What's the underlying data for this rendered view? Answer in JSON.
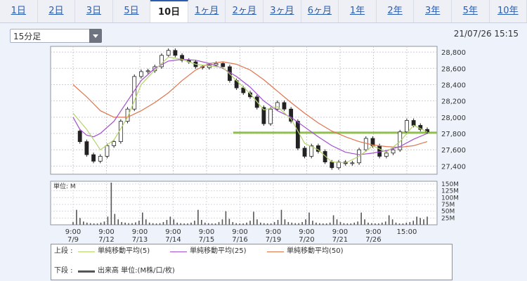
{
  "tabs": [
    {
      "label": "1日",
      "active": false
    },
    {
      "label": "2日",
      "active": false
    },
    {
      "label": "3日",
      "active": false
    },
    {
      "label": "5日",
      "active": false
    },
    {
      "label": "10日",
      "active": true
    },
    {
      "label": "1ヶ月",
      "active": false
    },
    {
      "label": "2ヶ月",
      "active": false
    },
    {
      "label": "3ヶ月",
      "active": false
    },
    {
      "label": "6ヶ月",
      "active": false
    },
    {
      "label": "1年",
      "active": false
    },
    {
      "label": "2年",
      "active": false
    },
    {
      "label": "3年",
      "active": false
    },
    {
      "label": "5年",
      "active": false
    },
    {
      "label": "10年",
      "active": false
    }
  ],
  "interval_select": {
    "value": "15分足"
  },
  "timestamp": "21/07/26 15:15",
  "legend": {
    "upper_label": "上段 :",
    "lower_label": "下段 :",
    "ma5": "単純移動平均(5)",
    "ma25": "単純移動平均(25)",
    "ma50": "単純移動平均(50)",
    "volume": "出来高 単位:(M株/口/枚)"
  },
  "colors": {
    "ma5": "#b5d36b",
    "ma25": "#a24fd0",
    "ma50": "#e0744d",
    "up": "#ffffff",
    "down": "#222222",
    "horizontal_line": "#8ec04a"
  },
  "chart_data": [
    {
      "type": "candlestick",
      "y_ticks": [
        "27,400",
        "27,600",
        "27,800",
        "28,000",
        "28,200",
        "28,400",
        "28,600",
        "28,800"
      ],
      "ylim": [
        27300,
        28870
      ],
      "x_tick_times": [
        "9:00",
        "9:00",
        "9:00",
        "9:00",
        "9:00",
        "9:00",
        "9:00",
        "9:00",
        "9:00",
        "9:00",
        "15:00"
      ],
      "x_tick_dates": [
        "7/9",
        "7/12",
        "7/13",
        "7/14",
        "7/15",
        "7/16",
        "7/19",
        "7/20",
        "7/21",
        "7/26",
        ""
      ],
      "horizontal_line": 27810,
      "close_path": [
        [
          0,
          27830
        ],
        [
          1,
          27700
        ],
        [
          2,
          27540
        ],
        [
          3,
          27460
        ],
        [
          4,
          27520
        ],
        [
          5,
          27650
        ],
        [
          6,
          27700
        ],
        [
          7,
          27950
        ],
        [
          8,
          28100
        ],
        [
          9,
          28500
        ],
        [
          10,
          28560
        ],
        [
          11,
          28570
        ],
        [
          12,
          28620
        ],
        [
          13,
          28760
        ],
        [
          14,
          28820
        ],
        [
          15,
          28760
        ],
        [
          16,
          28700
        ],
        [
          17,
          28680
        ],
        [
          18,
          28620
        ],
        [
          19,
          28610
        ],
        [
          20,
          28640
        ],
        [
          21,
          28660
        ],
        [
          22,
          28620
        ],
        [
          23,
          28450
        ],
        [
          24,
          28360
        ],
        [
          25,
          28300
        ],
        [
          26,
          28250
        ],
        [
          27,
          28120
        ],
        [
          28,
          27920
        ],
        [
          29,
          28100
        ],
        [
          30,
          28180
        ],
        [
          31,
          28100
        ],
        [
          32,
          27950
        ],
        [
          33,
          27620
        ],
        [
          34,
          27520
        ],
        [
          35,
          27650
        ],
        [
          36,
          27580
        ],
        [
          37,
          27450
        ],
        [
          38,
          27380
        ],
        [
          39,
          27450
        ],
        [
          40,
          27430
        ],
        [
          41,
          27440
        ],
        [
          42,
          27600
        ],
        [
          43,
          27740
        ],
        [
          44,
          27650
        ],
        [
          45,
          27520
        ],
        [
          46,
          27560
        ],
        [
          47,
          27600
        ],
        [
          48,
          27820
        ],
        [
          49,
          27960
        ],
        [
          50,
          27900
        ],
        [
          51,
          27850
        ],
        [
          52,
          27820
        ]
      ],
      "ma5_path": [
        [
          0,
          28050
        ],
        [
          2,
          27850
        ],
        [
          4,
          27600
        ],
        [
          6,
          27720
        ],
        [
          8,
          28000
        ],
        [
          10,
          28400
        ],
        [
          12,
          28580
        ],
        [
          14,
          28740
        ],
        [
          16,
          28710
        ],
        [
          18,
          28650
        ],
        [
          20,
          28630
        ],
        [
          22,
          28610
        ],
        [
          24,
          28450
        ],
        [
          26,
          28290
        ],
        [
          28,
          28090
        ],
        [
          30,
          28130
        ],
        [
          32,
          27980
        ],
        [
          34,
          27680
        ],
        [
          36,
          27600
        ],
        [
          38,
          27450
        ],
        [
          40,
          27440
        ],
        [
          42,
          27520
        ],
        [
          44,
          27650
        ],
        [
          46,
          27570
        ],
        [
          48,
          27700
        ],
        [
          50,
          27900
        ],
        [
          52,
          27820
        ]
      ],
      "ma25_path": [
        [
          0,
          28000
        ],
        [
          1,
          27850
        ],
        [
          2,
          27780
        ],
        [
          3,
          27760
        ],
        [
          4,
          27800
        ],
        [
          6,
          27950
        ],
        [
          8,
          28200
        ],
        [
          10,
          28450
        ],
        [
          12,
          28600
        ],
        [
          14,
          28690
        ],
        [
          16,
          28710
        ],
        [
          18,
          28700
        ],
        [
          20,
          28660
        ],
        [
          22,
          28600
        ],
        [
          24,
          28500
        ],
        [
          26,
          28370
        ],
        [
          28,
          28200
        ],
        [
          30,
          28080
        ],
        [
          32,
          28000
        ],
        [
          34,
          27880
        ],
        [
          36,
          27760
        ],
        [
          38,
          27650
        ],
        [
          40,
          27570
        ],
        [
          42,
          27540
        ],
        [
          44,
          27560
        ],
        [
          46,
          27590
        ],
        [
          48,
          27640
        ],
        [
          50,
          27730
        ],
        [
          52,
          27800
        ]
      ],
      "ma50_path": [
        [
          0,
          28400
        ],
        [
          2,
          28250
        ],
        [
          4,
          28080
        ],
        [
          6,
          28000
        ],
        [
          8,
          28000
        ],
        [
          10,
          28080
        ],
        [
          12,
          28180
        ],
        [
          14,
          28300
        ],
        [
          16,
          28450
        ],
        [
          18,
          28580
        ],
        [
          20,
          28660
        ],
        [
          22,
          28680
        ],
        [
          24,
          28650
        ],
        [
          26,
          28580
        ],
        [
          28,
          28460
        ],
        [
          30,
          28320
        ],
        [
          32,
          28180
        ],
        [
          34,
          28050
        ],
        [
          36,
          27930
        ],
        [
          38,
          27830
        ],
        [
          40,
          27760
        ],
        [
          42,
          27700
        ],
        [
          44,
          27660
        ],
        [
          46,
          27640
        ],
        [
          48,
          27630
        ],
        [
          50,
          27650
        ],
        [
          52,
          27700
        ]
      ]
    },
    {
      "type": "bar",
      "title": "単位: M",
      "y_ticks": [
        "25M",
        "50M",
        "75M",
        "100M",
        "125M",
        "150M"
      ],
      "ylim": [
        0,
        160
      ],
      "values": [
        10,
        55,
        25,
        12,
        8,
        6,
        5,
        5,
        8,
        12,
        30,
        155,
        40,
        20,
        10,
        8,
        6,
        6,
        9,
        15,
        45,
        20,
        8,
        6,
        5,
        6,
        10,
        18,
        30,
        20,
        8,
        6,
        5,
        5,
        8,
        15,
        55,
        18,
        8,
        6,
        5,
        5,
        10,
        20,
        50,
        22,
        10,
        6,
        5,
        5,
        8,
        15,
        48,
        20,
        8,
        6,
        5,
        5,
        10,
        18,
        55,
        20,
        10,
        8,
        6,
        6,
        10,
        20,
        45,
        15,
        8,
        6,
        5,
        5,
        8,
        35,
        20,
        10,
        6,
        5,
        5,
        8,
        12,
        45,
        20,
        8,
        6,
        5,
        5,
        8,
        12,
        35,
        20,
        8,
        5,
        5,
        8,
        10,
        15,
        30,
        25,
        20,
        30
      ]
    }
  ]
}
